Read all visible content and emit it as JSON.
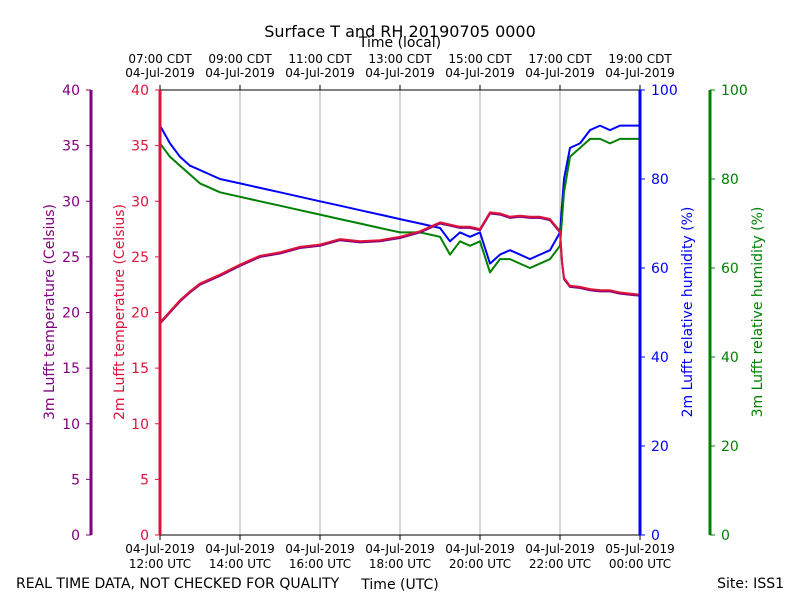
{
  "chart_data": {
    "type": "line",
    "title": "Surface T and RH 20190705 0000",
    "top_axis_title": "Time (local)",
    "xlabel": "Time (UTC)",
    "footer_left": "REAL TIME DATA, NOT CHECKED FOR QUALITY",
    "footer_right": "Site: ISS1",
    "x_range_hours_utc": [
      12,
      24
    ],
    "x_bottom_ticks": [
      {
        "h": 12,
        "line1": "04-Jul-2019",
        "line2": "12:00 UTC"
      },
      {
        "h": 14,
        "line1": "04-Jul-2019",
        "line2": "14:00 UTC"
      },
      {
        "h": 16,
        "line1": "04-Jul-2019",
        "line2": "16:00 UTC"
      },
      {
        "h": 18,
        "line1": "04-Jul-2019",
        "line2": "18:00 UTC"
      },
      {
        "h": 20,
        "line1": "04-Jul-2019",
        "line2": "20:00 UTC"
      },
      {
        "h": 22,
        "line1": "04-Jul-2019",
        "line2": "22:00 UTC"
      },
      {
        "h": 24,
        "line1": "05-Jul-2019",
        "line2": "00:00 UTC"
      }
    ],
    "x_top_ticks": [
      {
        "h": 12,
        "line1": "07:00 CDT",
        "line2": "04-Jul-2019"
      },
      {
        "h": 14,
        "line1": "09:00 CDT",
        "line2": "04-Jul-2019"
      },
      {
        "h": 16,
        "line1": "11:00 CDT",
        "line2": "04-Jul-2019"
      },
      {
        "h": 18,
        "line1": "13:00 CDT",
        "line2": "04-Jul-2019"
      },
      {
        "h": 20,
        "line1": "15:00 CDT",
        "line2": "04-Jul-2019"
      },
      {
        "h": 22,
        "line1": "17:00 CDT",
        "line2": "04-Jul-2019"
      },
      {
        "h": 24,
        "line1": "19:00 CDT",
        "line2": "04-Jul-2019"
      }
    ],
    "axes": {
      "t3m": {
        "label": "3m Lufft temperature (Celsius)",
        "range": [
          0,
          40
        ],
        "ticks": [
          0,
          5,
          10,
          15,
          20,
          25,
          30,
          35,
          40
        ],
        "color": "#800080"
      },
      "t2m": {
        "label": "2m Lufft temperature (Celsius)",
        "range": [
          0,
          40
        ],
        "ticks": [
          0,
          5,
          10,
          15,
          20,
          25,
          30,
          35,
          40
        ],
        "color": "#dc143c"
      },
      "rh2m": {
        "label": "2m Lufft relative humidity (%)",
        "range": [
          0,
          100
        ],
        "ticks": [
          0,
          20,
          40,
          60,
          80,
          100
        ],
        "color": "#0000ff"
      },
      "rh3m": {
        "label": "3m Lufft relative humidity (%)",
        "range": [
          0,
          100
        ],
        "ticks": [
          0,
          20,
          40,
          60,
          80,
          100
        ],
        "color": "#008000"
      }
    },
    "series": [
      {
        "name": "2m Lufft relative humidity",
        "axis": "rh2m",
        "color": "#0000ff",
        "x": [
          12.0,
          12.25,
          12.5,
          12.75,
          13.0,
          13.5,
          14.0,
          14.5,
          15.0,
          15.5,
          16.0,
          16.5,
          17.0,
          17.5,
          18.0,
          18.5,
          19.0,
          19.25,
          19.5,
          19.75,
          20.0,
          20.25,
          20.5,
          20.75,
          21.0,
          21.25,
          21.5,
          21.75,
          22.0,
          22.1,
          22.25,
          22.5,
          22.75,
          23.0,
          23.25,
          23.5,
          23.75,
          24.0
        ],
        "y": [
          92,
          88,
          85,
          83,
          82,
          80,
          79,
          78,
          77,
          76,
          75,
          74,
          73,
          72,
          71,
          70,
          69,
          66,
          68,
          67,
          68,
          61,
          63,
          64,
          63,
          62,
          63,
          64,
          68,
          80,
          87,
          88,
          91,
          92,
          91,
          92,
          92,
          92
        ]
      },
      {
        "name": "3m Lufft relative humidity",
        "axis": "rh3m",
        "color": "#008000",
        "x": [
          12.0,
          12.25,
          12.5,
          12.75,
          13.0,
          13.5,
          14.0,
          14.5,
          15.0,
          15.5,
          16.0,
          16.5,
          17.0,
          17.5,
          18.0,
          18.5,
          19.0,
          19.25,
          19.5,
          19.75,
          20.0,
          20.25,
          20.5,
          20.75,
          21.0,
          21.25,
          21.5,
          21.75,
          22.0,
          22.1,
          22.25,
          22.5,
          22.75,
          23.0,
          23.25,
          23.5,
          23.75,
          24.0
        ],
        "y": [
          88,
          85,
          83,
          81,
          79,
          77,
          76,
          75,
          74,
          73,
          72,
          71,
          70,
          69,
          68,
          68,
          67,
          63,
          66,
          65,
          66,
          59,
          62,
          62,
          61,
          60,
          61,
          62,
          65,
          77,
          85,
          87,
          89,
          89,
          88,
          89,
          89,
          89
        ]
      },
      {
        "name": "3m Lufft temperature",
        "axis": "t3m",
        "color": "#800080",
        "x": [
          12.0,
          12.25,
          12.5,
          12.75,
          13.0,
          13.5,
          14.0,
          14.5,
          15.0,
          15.5,
          16.0,
          16.5,
          17.0,
          17.5,
          18.0,
          18.5,
          19.0,
          19.25,
          19.5,
          19.75,
          20.0,
          20.25,
          20.5,
          20.75,
          21.0,
          21.25,
          21.5,
          21.75,
          22.0,
          22.05,
          22.1,
          22.25,
          22.5,
          22.75,
          23.0,
          23.25,
          23.5,
          23.75,
          24.0
        ],
        "y": [
          19.0,
          20.0,
          21.0,
          21.8,
          22.5,
          23.3,
          24.2,
          25.0,
          25.3,
          25.8,
          26.0,
          26.5,
          26.3,
          26.4,
          26.7,
          27.2,
          28.0,
          27.8,
          27.6,
          27.6,
          27.4,
          28.9,
          28.8,
          28.5,
          28.6,
          28.5,
          28.5,
          28.3,
          27.2,
          24.5,
          23.0,
          22.3,
          22.2,
          22.0,
          21.9,
          21.9,
          21.7,
          21.6,
          21.5
        ]
      },
      {
        "name": "2m Lufft temperature",
        "axis": "t2m",
        "color": "#dc143c",
        "x": [
          12.0,
          12.25,
          12.5,
          12.75,
          13.0,
          13.5,
          14.0,
          14.5,
          15.0,
          15.5,
          16.0,
          16.5,
          17.0,
          17.5,
          18.0,
          18.5,
          19.0,
          19.25,
          19.5,
          19.75,
          20.0,
          20.25,
          20.5,
          20.75,
          21.0,
          21.25,
          21.5,
          21.75,
          22.0,
          22.05,
          22.1,
          22.25,
          22.5,
          22.75,
          23.0,
          23.25,
          23.5,
          23.75,
          24.0
        ],
        "y": [
          19.1,
          20.1,
          21.1,
          21.9,
          22.6,
          23.4,
          24.3,
          25.1,
          25.4,
          25.9,
          26.1,
          26.6,
          26.4,
          26.5,
          26.8,
          27.3,
          28.1,
          27.9,
          27.7,
          27.7,
          27.5,
          29.0,
          28.9,
          28.6,
          28.7,
          28.6,
          28.6,
          28.4,
          27.3,
          24.6,
          23.1,
          22.4,
          22.3,
          22.1,
          22.0,
          22.0,
          21.8,
          21.7,
          21.6
        ]
      }
    ]
  }
}
